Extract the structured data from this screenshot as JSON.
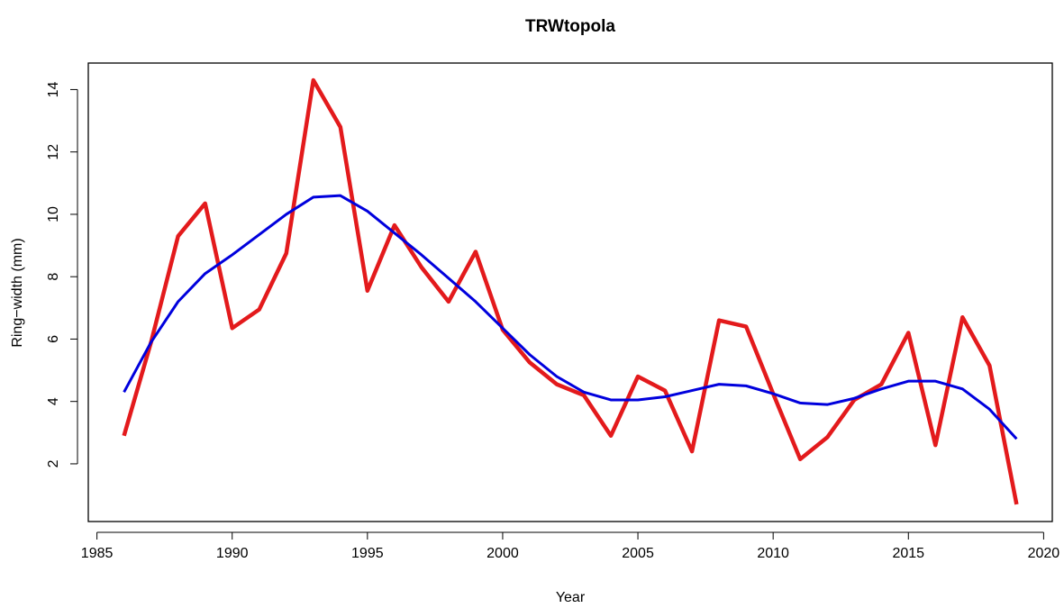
{
  "chart_data": {
    "type": "line",
    "title": "TRWtopola",
    "x_label": "Year",
    "y_label": "Ring−width (mm)",
    "x": [
      1986,
      1987,
      1988,
      1989,
      1990,
      1991,
      1992,
      1993,
      1994,
      1995,
      1996,
      1997,
      1998,
      1999,
      2000,
      2001,
      2002,
      2003,
      2004,
      2005,
      2006,
      2007,
      2008,
      2009,
      2010,
      2011,
      2012,
      2013,
      2014,
      2015,
      2016,
      2017,
      2018,
      2019
    ],
    "series": [
      {
        "color": "#e31a1c",
        "values": [
          2.9,
          5.9,
          9.3,
          10.35,
          6.35,
          6.95,
          8.75,
          14.3,
          12.8,
          7.55,
          9.65,
          8.3,
          7.2,
          8.8,
          6.3,
          5.25,
          4.55,
          4.2,
          2.9,
          4.8,
          4.35,
          2.4,
          6.6,
          6.4,
          4.25,
          2.15,
          2.85,
          4.05,
          4.55,
          6.2,
          2.6,
          6.7,
          5.15,
          0.7
        ]
      },
      {
        "color": "#0000dd",
        "values": [
          4.3,
          5.9,
          7.2,
          8.1,
          8.7,
          9.35,
          10.0,
          10.55,
          10.6,
          10.1,
          9.4,
          8.7,
          7.95,
          7.2,
          6.35,
          5.5,
          4.8,
          4.3,
          4.05,
          4.05,
          4.15,
          4.35,
          4.55,
          4.5,
          4.25,
          3.95,
          3.9,
          4.1,
          4.4,
          4.65,
          4.65,
          4.4,
          3.75,
          2.8
        ]
      }
    ],
    "xlim": [
      1984.68,
      2020.32
    ],
    "xticks": [
      1985,
      1990,
      1995,
      2000,
      2005,
      2010,
      2015,
      2020
    ],
    "ylim": [
      0.15,
      14.85
    ],
    "yticks": [
      2,
      4,
      6,
      8,
      10,
      12,
      14
    ],
    "grid": false
  }
}
